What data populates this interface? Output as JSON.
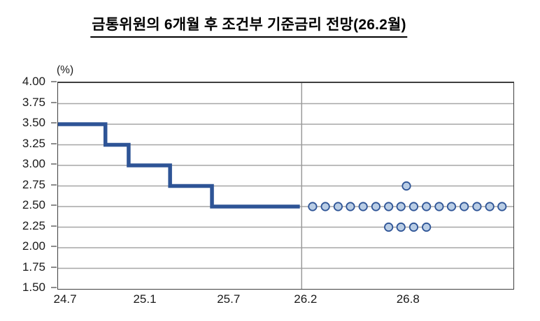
{
  "chart_data": {
    "type": "line",
    "title": "금통위원의 6개월 후 조건부 기준금리 전망(26.2월)",
    "unit_label": "(%)",
    "ylabel": "",
    "xlabel": "",
    "ylim": [
      1.5,
      4.0
    ],
    "y_tick_step": 0.25,
    "grid": true,
    "legend": "none",
    "colors": {
      "rate_line": "#2E5496",
      "dot_fill": "#B9CDE5",
      "dot_stroke": "#2E5496",
      "gridline": "#A6A6A6",
      "frame": "#3f3f3f",
      "divider": "#9a9a9a"
    },
    "y_ticks": [
      "4.00",
      "3.75",
      "3.50",
      "3.25",
      "3.00",
      "2.75",
      "2.50",
      "2.25",
      "2.00",
      "1.75",
      "1.50"
    ],
    "x_ticks": [
      {
        "label": "24.7",
        "pos": 0.017
      },
      {
        "label": "25.1",
        "pos": 0.192
      },
      {
        "label": "25.7",
        "pos": 0.376
      },
      {
        "label": "26.2",
        "pos": 0.545
      },
      {
        "label": "26.8",
        "pos": 0.77
      }
    ],
    "forecast_divider_pos": 0.535,
    "base_rate_step_path": {
      "description": "historical policy rate step line, percent",
      "segments": [
        {
          "rate": 3.5,
          "x_start": 0.0,
          "x_end": 0.104
        },
        {
          "rate": 3.25,
          "x_start": 0.104,
          "x_end": 0.155
        },
        {
          "rate": 3.0,
          "x_start": 0.155,
          "x_end": 0.246
        },
        {
          "rate": 2.75,
          "x_start": 0.246,
          "x_end": 0.338
        },
        {
          "rate": 2.5,
          "x_start": 0.338,
          "x_end": 0.531
        }
      ]
    },
    "forecast_dots": {
      "description": "member forecasts of base rate at 6-month horizon, percent",
      "counts": {
        "2.75": 1,
        "2.50": 16,
        "2.25": 4
      },
      "points": [
        {
          "x": 0.765,
          "rate": 2.75
        },
        {
          "x": 0.559,
          "rate": 2.5
        },
        {
          "x": 0.587,
          "rate": 2.5
        },
        {
          "x": 0.615,
          "rate": 2.5
        },
        {
          "x": 0.642,
          "rate": 2.5
        },
        {
          "x": 0.67,
          "rate": 2.5
        },
        {
          "x": 0.698,
          "rate": 2.5
        },
        {
          "x": 0.726,
          "rate": 2.5
        },
        {
          "x": 0.753,
          "rate": 2.5
        },
        {
          "x": 0.781,
          "rate": 2.5
        },
        {
          "x": 0.809,
          "rate": 2.5
        },
        {
          "x": 0.837,
          "rate": 2.5
        },
        {
          "x": 0.864,
          "rate": 2.5
        },
        {
          "x": 0.892,
          "rate": 2.5
        },
        {
          "x": 0.92,
          "rate": 2.5
        },
        {
          "x": 0.948,
          "rate": 2.5
        },
        {
          "x": 0.975,
          "rate": 2.5
        },
        {
          "x": 0.726,
          "rate": 2.25
        },
        {
          "x": 0.753,
          "rate": 2.25
        },
        {
          "x": 0.781,
          "rate": 2.25
        },
        {
          "x": 0.809,
          "rate": 2.25
        }
      ]
    }
  }
}
